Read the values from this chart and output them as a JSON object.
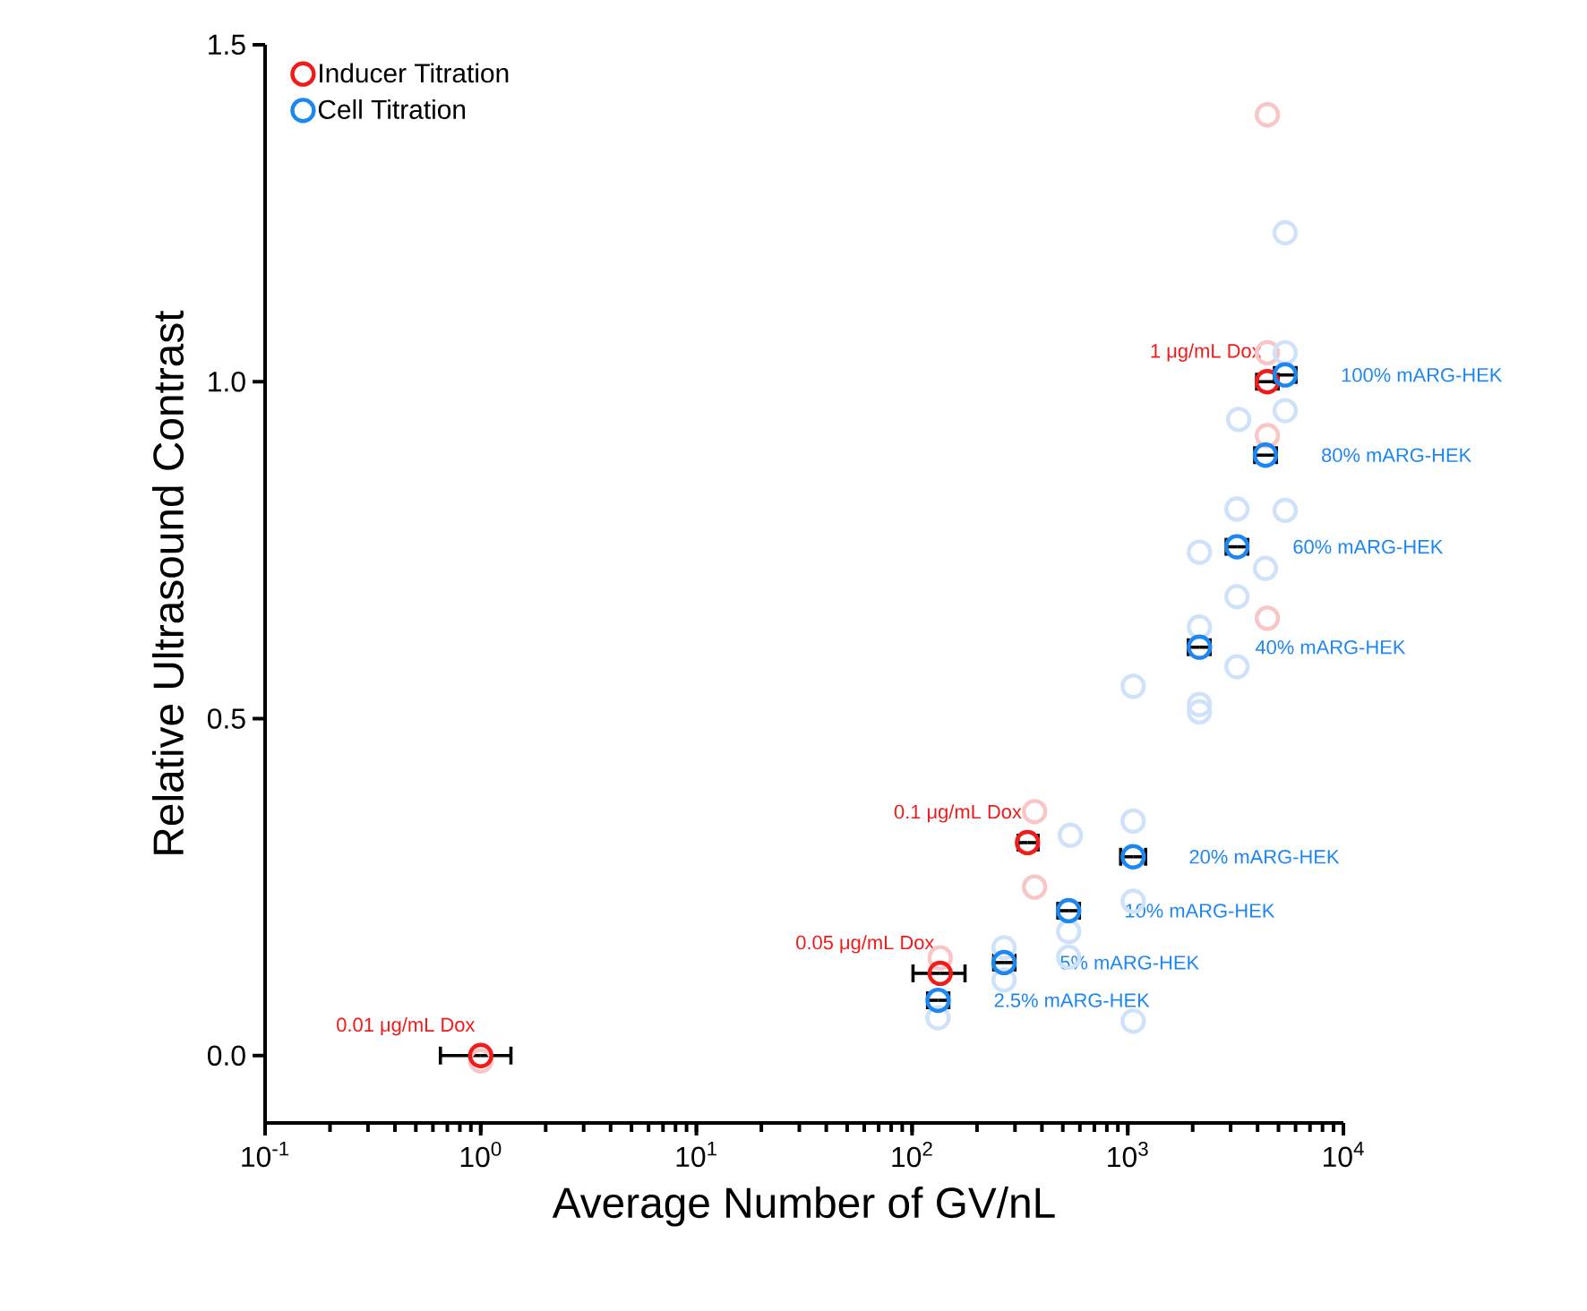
{
  "chart_data": {
    "type": "scatter",
    "xlabel": "Average Number of GV/nL",
    "ylabel": "Relative Ultrasound Contrast",
    "log": "x",
    "xlim": [
      0.1,
      10000
    ],
    "ylim": [
      -0.1,
      1.5
    ],
    "xticks": [
      {
        "value": 0.1,
        "label": "10$^{-1}$"
      },
      {
        "value": 1,
        "label": "10$^{0}$"
      },
      {
        "value": 10,
        "label": "10$^{1}$"
      },
      {
        "value": 100,
        "label": "10$^{2}$"
      },
      {
        "value": 1000,
        "label": "10$^{3}$"
      },
      {
        "value": 10000,
        "label": "10$^{4}$"
      }
    ],
    "yticks": [
      {
        "value": 0,
        "label": "0.0"
      },
      {
        "value": 0.5,
        "label": "0.5"
      },
      {
        "value": 1,
        "label": "1.0"
      },
      {
        "value": 1.5,
        "label": "1.5"
      }
    ],
    "legend": "top left",
    "marker": "circle",
    "annotations": [
      {
        "text": "0.01 μg/mL Dox",
        "x": 1,
        "y": 0
      },
      {
        "text": "0.05 μg/mL Dox",
        "x": 135,
        "y": 0.122
      },
      {
        "text": "0.1 μg/mL Dox",
        "x": 343,
        "y": 0.316
      },
      {
        "text": "1 μg/mL Dox",
        "x": 4436,
        "y": 1.0
      },
      {
        "text": "2.5% mARG-HEK",
        "x": 132,
        "y": 0.082
      },
      {
        "text": "5% mARG-HEK",
        "x": 267,
        "y": 0.138
      },
      {
        "text": "10% mARG-HEK",
        "x": 532,
        "y": 0.215
      },
      {
        "text": "20% mARG-HEK",
        "x": 1060,
        "y": 0.295
      },
      {
        "text": "40% mARG-HEK",
        "x": 2150,
        "y": 0.606
      },
      {
        "text": "60% mARG-HEK",
        "x": 3210,
        "y": 0.755
      },
      {
        "text": "80% mARG-HEK",
        "x": 4350,
        "y": 0.891
      },
      {
        "text": "100% mARG-HEK",
        "x": 5370,
        "y": 1.01
      }
    ],
    "series": [
      {
        "color": "#f8c6c6",
        "x": [
          1,
          135,
          370,
          370,
          4440,
          4440,
          4440,
          4440
        ],
        "values": [
          -0.008,
          0.145,
          0.362,
          0.25,
          1.396,
          1.043,
          0.92,
          0.649
        ]
      },
      {
        "color": "#cfe2fa",
        "x": [
          5370,
          5370,
          5370,
          3270,
          5370,
          3210,
          2150,
          4350,
          3210,
          2150,
          3210,
          1060,
          2150,
          2150,
          1060,
          542,
          1060,
          1060,
          532,
          532,
          267,
          267,
          132
        ],
        "values": [
          1.221,
          1.043,
          0.957,
          0.944,
          0.809,
          0.811,
          0.747,
          0.723,
          0.681,
          0.636,
          0.577,
          0.548,
          0.521,
          0.51,
          0.348,
          0.327,
          0.229,
          0.051,
          0.184,
          0.146,
          0.16,
          0.112,
          0.056
        ]
      },
      {
        "name": "Inducer Titration",
        "color": "#f21b1b",
        "x": [
          1,
          135,
          343,
          4436
        ],
        "values": [
          0,
          0.122,
          0.316,
          1.0
        ],
        "xerrors": [
          [
            0.65,
            1.38
          ],
          [
            101,
            176
          ],
          [
            310,
            384
          ],
          [
            3960,
            4980
          ]
        ]
      },
      {
        "name": "Cell Titration",
        "color": "#1c86f2",
        "x": [
          132,
          267,
          532,
          1060,
          2150,
          3210,
          4350,
          5370
        ],
        "values": [
          0.082,
          0.138,
          0.215,
          0.295,
          0.606,
          0.755,
          0.891,
          1.01
        ],
        "xerrors": [
          [
            118,
            148
          ],
          [
            239,
            300
          ],
          [
            474,
            597
          ],
          [
            927,
            1210
          ],
          [
            1910,
            2410
          ],
          [
            2860,
            3600
          ],
          [
            3880,
            4890
          ],
          [
            4790,
            6030
          ]
        ]
      }
    ]
  }
}
